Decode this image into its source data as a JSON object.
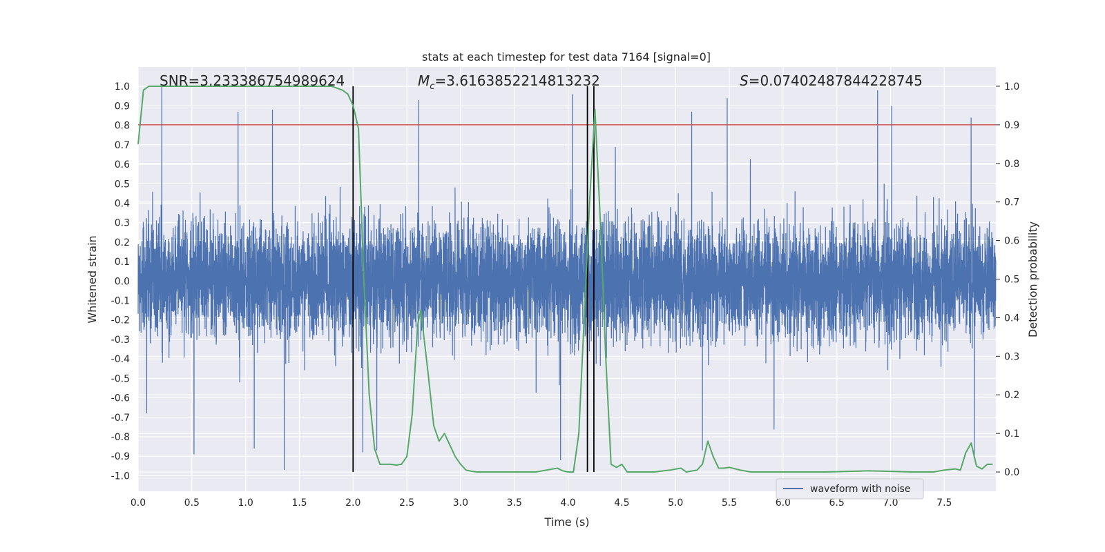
{
  "chart_data": {
    "type": "line",
    "title": "stats at each timestep for test data 7164 [signal=0]",
    "xlabel": "Time (s)",
    "ylabel": "Whitened strain",
    "y2label": "Detection probability",
    "xlim": [
      0.0,
      7.98
    ],
    "ylim": [
      -1.08,
      1.1
    ],
    "y2lim": [
      -0.05,
      1.05
    ],
    "x_ticks": [
      0.0,
      0.5,
      1.0,
      1.5,
      2.0,
      2.5,
      3.0,
      3.5,
      4.0,
      4.5,
      5.0,
      5.5,
      6.0,
      6.5,
      7.0,
      7.5
    ],
    "y_ticks": [
      -1.0,
      -0.9,
      -0.8,
      -0.7,
      -0.6,
      -0.5,
      -0.4,
      -0.3,
      -0.2,
      -0.1,
      0.0,
      0.1,
      0.2,
      0.3,
      0.4,
      0.5,
      0.6,
      0.7,
      0.8,
      0.9,
      1.0
    ],
    "y2_ticks": [
      0.0,
      0.1,
      0.2,
      0.3,
      0.4,
      0.5,
      0.6,
      0.7,
      0.8,
      0.9,
      1.0
    ],
    "grid": true,
    "legend_position": "lower-right",
    "annotations": {
      "snr": "SNR=3.233386754989624",
      "mc_prefix": "M",
      "mc_sub": "c",
      "mc_value": "=3.6163852214813232",
      "s_prefix": "S",
      "s_value": "=0.07402487844228745"
    },
    "threshold": {
      "value": 0.9,
      "axis": "right",
      "color": "#c44e52"
    },
    "vertical_lines": [
      2.0,
      4.18,
      4.24
    ],
    "series": [
      {
        "name": "waveform with noise",
        "axis": "left",
        "color": "#4c72b0",
        "style": "dense-noise",
        "sample_count": 8000,
        "typical_amplitude": 0.4,
        "spikes": [
          {
            "x": 0.22,
            "y": 1.0
          },
          {
            "x": 0.93,
            "y": 0.87
          },
          {
            "x": 1.25,
            "y": 0.88
          },
          {
            "x": 2.61,
            "y": 0.93
          },
          {
            "x": 4.04,
            "y": 0.96
          },
          {
            "x": 4.24,
            "y": 0.88
          },
          {
            "x": 5.15,
            "y": 0.87
          },
          {
            "x": 5.48,
            "y": 0.94
          },
          {
            "x": 6.88,
            "y": 0.98
          },
          {
            "x": 7.01,
            "y": 0.9
          },
          {
            "x": 7.75,
            "y": 0.84
          },
          {
            "x": 1.36,
            "y": -0.97
          },
          {
            "x": 0.52,
            "y": -0.89
          },
          {
            "x": 2.09,
            "y": -0.88
          },
          {
            "x": 3.93,
            "y": -0.92
          },
          {
            "x": 5.25,
            "y": -0.87
          },
          {
            "x": 7.78,
            "y": -0.91
          },
          {
            "x": 0.08,
            "y": -0.68
          },
          {
            "x": 1.08,
            "y": -0.86
          },
          {
            "x": 2.22,
            "y": -0.87
          }
        ]
      },
      {
        "name": "Detection probability",
        "axis": "right",
        "color": "#55a868",
        "x": [
          0.0,
          0.05,
          0.1,
          0.2,
          0.5,
          1.0,
          1.5,
          1.8,
          1.9,
          1.95,
          2.0,
          2.05,
          2.1,
          2.15,
          2.2,
          2.25,
          2.3,
          2.35,
          2.4,
          2.45,
          2.5,
          2.55,
          2.6,
          2.63,
          2.7,
          2.75,
          2.8,
          2.85,
          2.9,
          2.95,
          3.0,
          3.05,
          3.1,
          3.15,
          3.3,
          3.5,
          3.7,
          3.8,
          3.9,
          3.95,
          4.0,
          4.05,
          4.1,
          4.15,
          4.2,
          4.25,
          4.3,
          4.35,
          4.4,
          4.45,
          4.5,
          4.55,
          4.6,
          4.8,
          4.95,
          5.05,
          5.1,
          5.2,
          5.25,
          5.3,
          5.35,
          5.4,
          5.45,
          5.5,
          5.6,
          5.7,
          6.0,
          6.4,
          6.8,
          7.2,
          7.4,
          7.5,
          7.6,
          7.65,
          7.7,
          7.75,
          7.8,
          7.85,
          7.9,
          7.95
        ],
        "values": [
          0.85,
          0.99,
          1.0,
          1.0,
          1.0,
          1.0,
          1.0,
          1.0,
          0.99,
          0.98,
          0.95,
          0.89,
          0.5,
          0.2,
          0.06,
          0.02,
          0.02,
          0.02,
          0.018,
          0.02,
          0.04,
          0.15,
          0.38,
          0.42,
          0.25,
          0.12,
          0.08,
          0.1,
          0.07,
          0.04,
          0.02,
          0.005,
          0.002,
          0.0,
          0.0,
          0.0,
          0.0,
          0.005,
          0.01,
          0.003,
          0.0,
          0.0,
          0.1,
          0.4,
          0.7,
          0.94,
          0.65,
          0.3,
          0.02,
          0.012,
          0.02,
          0.0,
          0.0,
          0.0,
          0.005,
          0.01,
          0.0,
          0.005,
          0.02,
          0.08,
          0.04,
          0.01,
          0.01,
          0.012,
          0.005,
          0.0,
          0.0,
          0.0,
          0.003,
          0.0,
          0.0,
          0.005,
          0.008,
          0.005,
          0.05,
          0.075,
          0.015,
          0.008,
          0.02,
          0.02
        ]
      }
    ]
  }
}
